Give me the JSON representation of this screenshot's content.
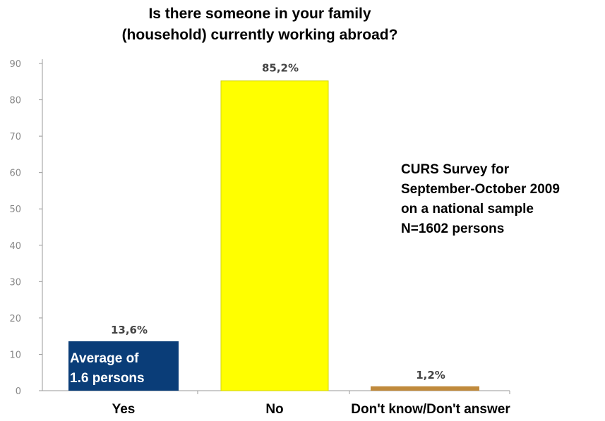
{
  "chart_data": {
    "type": "bar",
    "title": [
      "Is there someone in your family",
      "(household) currently working abroad?"
    ],
    "xlabel": "",
    "ylabel": "",
    "ylim": [
      0,
      90
    ],
    "yticks": [
      0,
      10,
      20,
      30,
      40,
      50,
      60,
      70,
      80,
      90
    ],
    "grid": false,
    "legend": "none",
    "categories": [
      "Yes",
      "No",
      "Don't know/Don't answer"
    ],
    "values": [
      13.6,
      85.2,
      1.2
    ],
    "data_labels": [
      "13,6%",
      "85,2%",
      "1,2%"
    ],
    "colors": [
      "#0a3d78",
      "#ffff00",
      "#c08a3c"
    ],
    "annotations": {
      "survey_note": [
        "CURS Survey for",
        "September-October 2009",
        "on a national sample",
        "N=1602 persons"
      ],
      "yes_bar_note": [
        "Average of",
        "1.6 persons"
      ]
    }
  }
}
